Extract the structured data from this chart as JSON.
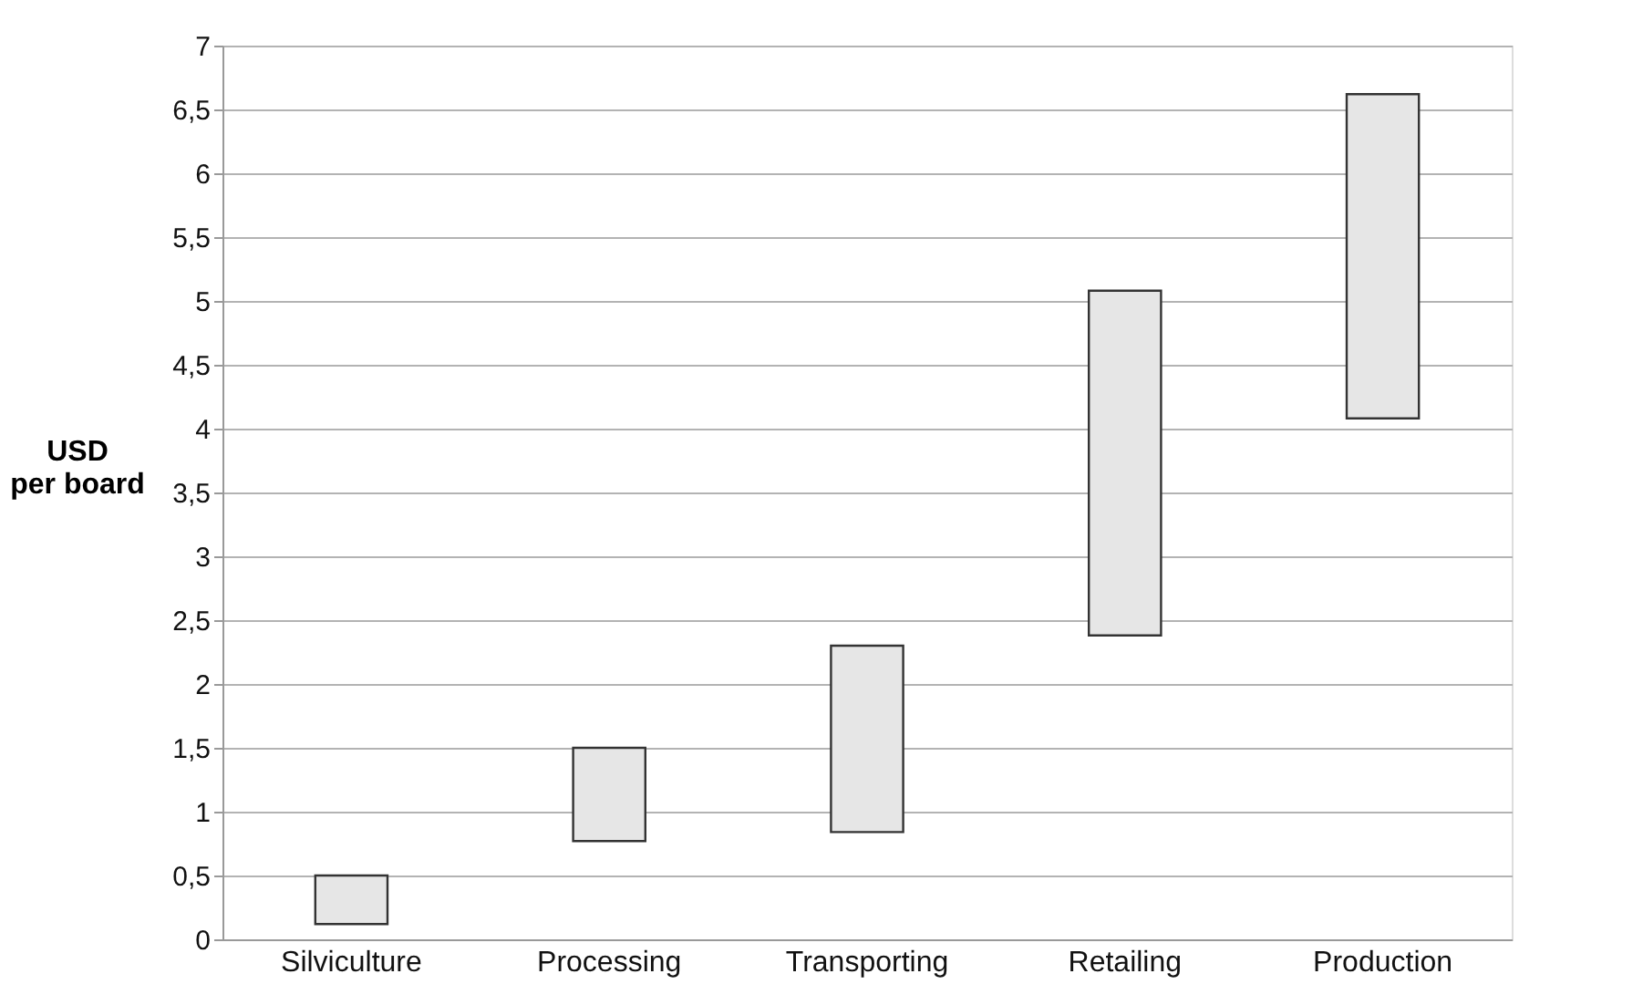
{
  "chart_data": {
    "type": "bar",
    "ylabel": "USD\nper board",
    "categories": [
      "Silviculture",
      "Processing",
      "Transporting",
      "Retailing",
      "Production"
    ],
    "base": [
      0.12,
      0.77,
      0.84,
      2.38,
      4.08
    ],
    "values": [
      0.38,
      0.73,
      1.46,
      2.7,
      2.54
    ],
    "color": "#e6e6e6",
    "ylim": [
      0,
      7
    ],
    "yticks": [
      0,
      {
        "value": 0.5,
        "label": "0,5"
      },
      1,
      {
        "value": 1.5,
        "label": "1,5"
      },
      2,
      {
        "value": 2.5,
        "label": "2,5"
      },
      3,
      {
        "value": 3.5,
        "label": "3,5"
      },
      4,
      {
        "value": 4.5,
        "label": "4,5"
      },
      5,
      {
        "value": 5.5,
        "label": "5,5"
      },
      6,
      {
        "value": 6.5,
        "label": "6,5"
      },
      7
    ],
    "grid": "y"
  }
}
